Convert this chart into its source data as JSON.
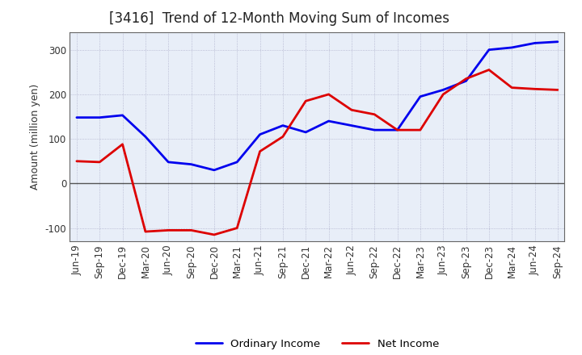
{
  "title": "[3416]  Trend of 12-Month Moving Sum of Incomes",
  "ylabel": "Amount (million yen)",
  "x_labels": [
    "Jun-19",
    "Sep-19",
    "Dec-19",
    "Mar-20",
    "Jun-20",
    "Sep-20",
    "Dec-20",
    "Mar-21",
    "Jun-21",
    "Sep-21",
    "Dec-21",
    "Mar-22",
    "Jun-22",
    "Sep-22",
    "Dec-22",
    "Mar-23",
    "Jun-23",
    "Sep-23",
    "Dec-23",
    "Mar-24",
    "Jun-24",
    "Sep-24"
  ],
  "ordinary_income": [
    148,
    148,
    153,
    105,
    48,
    43,
    30,
    48,
    110,
    130,
    115,
    140,
    130,
    120,
    120,
    195,
    210,
    230,
    300,
    305,
    315,
    318
  ],
  "net_income": [
    50,
    48,
    88,
    -108,
    -105,
    -105,
    -115,
    -100,
    72,
    105,
    185,
    200,
    165,
    155,
    120,
    120,
    200,
    235,
    255,
    215,
    212,
    210
  ],
  "ordinary_color": "#0000ee",
  "net_color": "#dd0000",
  "ylim": [
    -130,
    340
  ],
  "yticks": [
    -100,
    0,
    100,
    200,
    300
  ],
  "bg_color": "#ffffff",
  "plot_bg_color": "#e8eef8",
  "grid_color": "#9999bb",
  "line_width": 2.0,
  "title_fontsize": 12,
  "axis_label_fontsize": 9,
  "tick_fontsize": 8.5
}
